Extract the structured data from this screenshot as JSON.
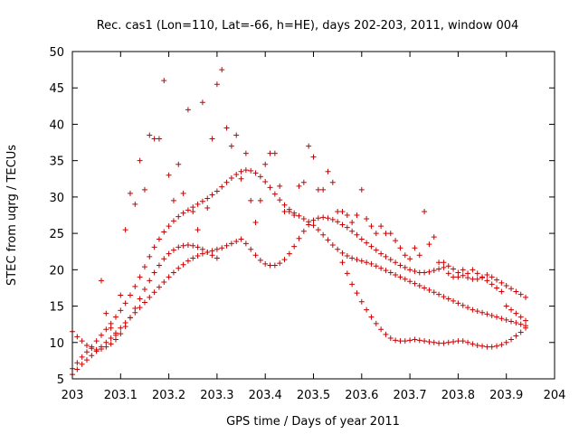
{
  "chart_data": {
    "type": "scatter",
    "title": "Rec. cas1 (Lon=110, Lat=-66, h=HE), days 202-203, 2011, window 004",
    "xlabel": "GPS time / Days of year 2011",
    "ylabel": "STEC from uqrg / TECUs",
    "xlim": [
      203,
      204
    ],
    "ylim": [
      5,
      50
    ],
    "xticks": [
      "203",
      "203.1",
      "203.2",
      "203.3",
      "203.4",
      "203.5",
      "203.6",
      "203.7",
      "203.8",
      "203.9",
      "204"
    ],
    "yticks": [
      "5",
      "10",
      "15",
      "20",
      "25",
      "30",
      "35",
      "40",
      "45",
      "50"
    ],
    "grid": false,
    "legend": "none",
    "marker": "plus",
    "color": "#cc0000",
    "series": [
      {
        "x": [
          203.0,
          203.01,
          203.02,
          203.03,
          203.04,
          203.05,
          203.06,
          203.07,
          203.08,
          203.09,
          203.1,
          203.11,
          203.12,
          203.13,
          203.14,
          203.15,
          203.16,
          203.17,
          203.18,
          203.19,
          203.2,
          203.21,
          203.22,
          203.23,
          203.24,
          203.25,
          203.26,
          203.27,
          203.28,
          203.29,
          203.3,
          203.31,
          203.32,
          203.33,
          203.34,
          203.35,
          203.36,
          203.37,
          203.38,
          203.39,
          203.4,
          203.41,
          203.42,
          203.43,
          203.44,
          203.45,
          203.46,
          203.47,
          203.48,
          203.49,
          203.5,
          203.51,
          203.52,
          203.53,
          203.54,
          203.55,
          203.56,
          203.57,
          203.58,
          203.59,
          203.6,
          203.61,
          203.62,
          203.63,
          203.64,
          203.65,
          203.66,
          203.67,
          203.68,
          203.69,
          203.7,
          203.71,
          203.72,
          203.73,
          203.74,
          203.75,
          203.76,
          203.77,
          203.78,
          203.79,
          203.8,
          203.81,
          203.82,
          203.83,
          203.84,
          203.85,
          203.86,
          203.87,
          203.88,
          203.89,
          203.9,
          203.91,
          203.92,
          203.93,
          203.94
        ],
        "y": [
          5.6,
          6.3,
          7.0,
          7.6,
          8.2,
          8.8,
          9.4,
          10.0,
          10.6,
          11.3,
          12.0,
          12.7,
          13.4,
          14.1,
          14.8,
          15.5,
          16.2,
          16.9,
          17.6,
          18.3,
          19.0,
          19.6,
          20.2,
          20.7,
          21.2,
          21.6,
          21.9,
          22.2,
          22.4,
          22.6,
          22.8,
          23.0,
          23.3,
          23.6,
          23.9,
          24.2,
          23.6,
          22.8,
          22.0,
          21.3,
          20.8,
          20.6,
          20.6,
          20.9,
          21.4,
          22.2,
          23.2,
          24.3,
          25.3,
          26.2,
          26.8,
          27.1,
          27.2,
          27.1,
          26.9,
          26.6,
          26.2,
          25.8,
          25.3,
          24.8,
          24.2,
          23.7,
          23.2,
          22.7,
          22.2,
          21.8,
          21.4,
          21.0,
          20.6,
          20.3,
          20.0,
          19.8,
          19.6,
          19.6,
          19.7,
          19.9,
          20.1,
          20.3,
          20.5,
          20.1,
          19.6,
          19.2,
          18.9,
          18.7,
          18.7,
          18.9,
          19.3,
          19.0,
          18.6,
          18.2,
          17.8,
          17.4,
          17.0,
          16.6,
          16.2
        ]
      },
      {
        "x": [
          203.0,
          203.01,
          203.02,
          203.03,
          203.04,
          203.05,
          203.06,
          203.07,
          203.08,
          203.09,
          203.1,
          203.11,
          203.12,
          203.13,
          203.14,
          203.15,
          203.16,
          203.17,
          203.18,
          203.19,
          203.2,
          203.21,
          203.22,
          203.23,
          203.24,
          203.25,
          203.26,
          203.27,
          203.28,
          203.29,
          203.3,
          203.31,
          203.32,
          203.33,
          203.34,
          203.35,
          203.36,
          203.37,
          203.38,
          203.39,
          203.4,
          203.41,
          203.42,
          203.43,
          203.44,
          203.45,
          203.46,
          203.47,
          203.48,
          203.49,
          203.5,
          203.51,
          203.52,
          203.53,
          203.54,
          203.55,
          203.56,
          203.57,
          203.58,
          203.59,
          203.6,
          203.61,
          203.62,
          203.63,
          203.64,
          203.65,
          203.66,
          203.67,
          203.68,
          203.69,
          203.7,
          203.71,
          203.72,
          203.73,
          203.74,
          203.75,
          203.76,
          203.77,
          203.78,
          203.79,
          203.8,
          203.81,
          203.82,
          203.83,
          203.84,
          203.85,
          203.86,
          203.87,
          203.88,
          203.89,
          203.9,
          203.91,
          203.92,
          203.93,
          203.94
        ],
        "y": [
          6.4,
          7.2,
          8.0,
          8.7,
          9.4,
          10.2,
          11.0,
          11.8,
          12.6,
          13.5,
          14.4,
          15.4,
          16.5,
          17.7,
          19.0,
          20.4,
          21.8,
          23.1,
          24.2,
          25.2,
          26.0,
          26.7,
          27.3,
          27.8,
          28.2,
          28.6,
          29.0,
          29.4,
          29.8,
          30.3,
          30.8,
          31.4,
          32.0,
          32.6,
          33.1,
          33.5,
          33.7,
          33.6,
          33.3,
          32.8,
          32.1,
          31.3,
          30.4,
          29.6,
          28.9,
          28.3,
          27.8,
          27.4,
          27.0,
          26.6,
          26.1,
          25.5,
          24.8,
          24.1,
          23.4,
          22.8,
          22.3,
          21.9,
          21.6,
          21.4,
          21.2,
          21.0,
          20.8,
          20.5,
          20.2,
          19.9,
          19.6,
          19.3,
          19.0,
          18.7,
          18.4,
          18.1,
          17.8,
          17.5,
          17.2,
          16.9,
          16.6,
          16.3,
          16.0,
          15.7,
          15.4,
          15.1,
          14.8,
          14.5,
          14.3,
          14.1,
          13.9,
          13.7,
          13.5,
          13.3,
          13.1,
          12.9,
          12.7,
          12.5,
          12.3
        ]
      },
      {
        "x": [
          203.06,
          203.07,
          203.08,
          203.09,
          203.1,
          203.11,
          203.12,
          203.13,
          203.14,
          203.15,
          203.16,
          203.17,
          203.18,
          203.19,
          203.2,
          203.21,
          203.22,
          203.23,
          203.24,
          203.25,
          203.26,
          203.27,
          203.28,
          203.29,
          203.3,
          203.31,
          203.32,
          203.33,
          203.34,
          203.35,
          203.36,
          203.37,
          203.38,
          203.39,
          203.4,
          203.41,
          203.42,
          203.43,
          203.44,
          203.45,
          203.46,
          203.47,
          203.48,
          203.49,
          203.5,
          203.51,
          203.52,
          203.53,
          203.54,
          203.55,
          203.56,
          203.57,
          203.58,
          203.59,
          203.6,
          203.61,
          203.62,
          203.63,
          203.64,
          203.65,
          203.66,
          203.67,
          203.68,
          203.69,
          203.7,
          203.71,
          203.72,
          203.73,
          203.74,
          203.75,
          203.76,
          203.77,
          203.78,
          203.79,
          203.8,
          203.81,
          203.82,
          203.83,
          203.84,
          203.85,
          203.86,
          203.87,
          203.88,
          203.89,
          203.9,
          203.91,
          203.92,
          203.93,
          203.94
        ],
        "y": [
          18.5,
          14.0,
          12.0,
          11.0,
          16.5,
          25.5,
          30.5,
          29.0,
          35.0,
          31.0,
          38.5,
          38.0,
          38.0,
          46.0,
          33.0,
          29.5,
          34.5,
          30.5,
          42.0,
          28.0,
          25.5,
          43.0,
          28.5,
          38.0,
          45.5,
          47.5,
          39.5,
          37.0,
          38.5,
          32.5,
          36.0,
          29.5,
          26.5,
          29.5,
          34.5,
          36.0,
          36.0,
          31.5,
          28.0,
          28.0,
          27.5,
          31.5,
          32.0,
          37.0,
          35.5,
          31.0,
          31.0,
          33.5,
          32.0,
          28.0,
          28.0,
          27.5,
          26.5,
          27.5,
          31.0,
          27.0,
          26.0,
          25.0,
          26.0,
          25.0,
          25.0,
          24.0,
          23.0,
          22.0,
          21.5,
          23.0,
          22.0,
          28.0,
          23.5,
          24.5,
          21.0,
          21.0,
          19.5,
          19.0,
          19.0,
          20.0,
          19.5,
          20.0,
          19.5,
          19.0,
          18.5,
          18.0,
          17.5,
          17.0,
          15.0,
          14.5,
          14.0,
          13.5,
          13.0
        ]
      },
      {
        "x": [
          203.0,
          203.01,
          203.02,
          203.03,
          203.04,
          203.05,
          203.06,
          203.07,
          203.08,
          203.09,
          203.1,
          203.11,
          203.12,
          203.13,
          203.14,
          203.15,
          203.16,
          203.17,
          203.18,
          203.19,
          203.2,
          203.21,
          203.22,
          203.23,
          203.24,
          203.25,
          203.26,
          203.27,
          203.28,
          203.29,
          203.3,
          203.56,
          203.57,
          203.58,
          203.59,
          203.6,
          203.61,
          203.62,
          203.63,
          203.64,
          203.65,
          203.66,
          203.67,
          203.68,
          203.69,
          203.7,
          203.71,
          203.72,
          203.73,
          203.74,
          203.75,
          203.76,
          203.77,
          203.78,
          203.79,
          203.8,
          203.81,
          203.82,
          203.83,
          203.84,
          203.85,
          203.86,
          203.87,
          203.88,
          203.89,
          203.9,
          203.91,
          203.92,
          203.93,
          203.94
        ],
        "y": [
          11.5,
          10.8,
          10.2,
          9.6,
          9.2,
          9.0,
          9.1,
          9.4,
          9.8,
          10.4,
          11.2,
          12.2,
          13.4,
          14.7,
          16.0,
          17.3,
          18.5,
          19.6,
          20.6,
          21.5,
          22.2,
          22.7,
          23.1,
          23.3,
          23.4,
          23.3,
          23.1,
          22.8,
          22.4,
          22.0,
          21.6,
          21.0,
          19.5,
          18.0,
          16.8,
          15.6,
          14.5,
          13.5,
          12.6,
          11.8,
          11.1,
          10.6,
          10.3,
          10.2,
          10.2,
          10.3,
          10.4,
          10.3,
          10.2,
          10.1,
          10.0,
          9.9,
          9.9,
          10.0,
          10.1,
          10.2,
          10.2,
          10.0,
          9.8,
          9.6,
          9.5,
          9.4,
          9.4,
          9.5,
          9.7,
          10.0,
          10.4,
          10.9,
          11.4,
          12.0
        ]
      }
    ]
  }
}
